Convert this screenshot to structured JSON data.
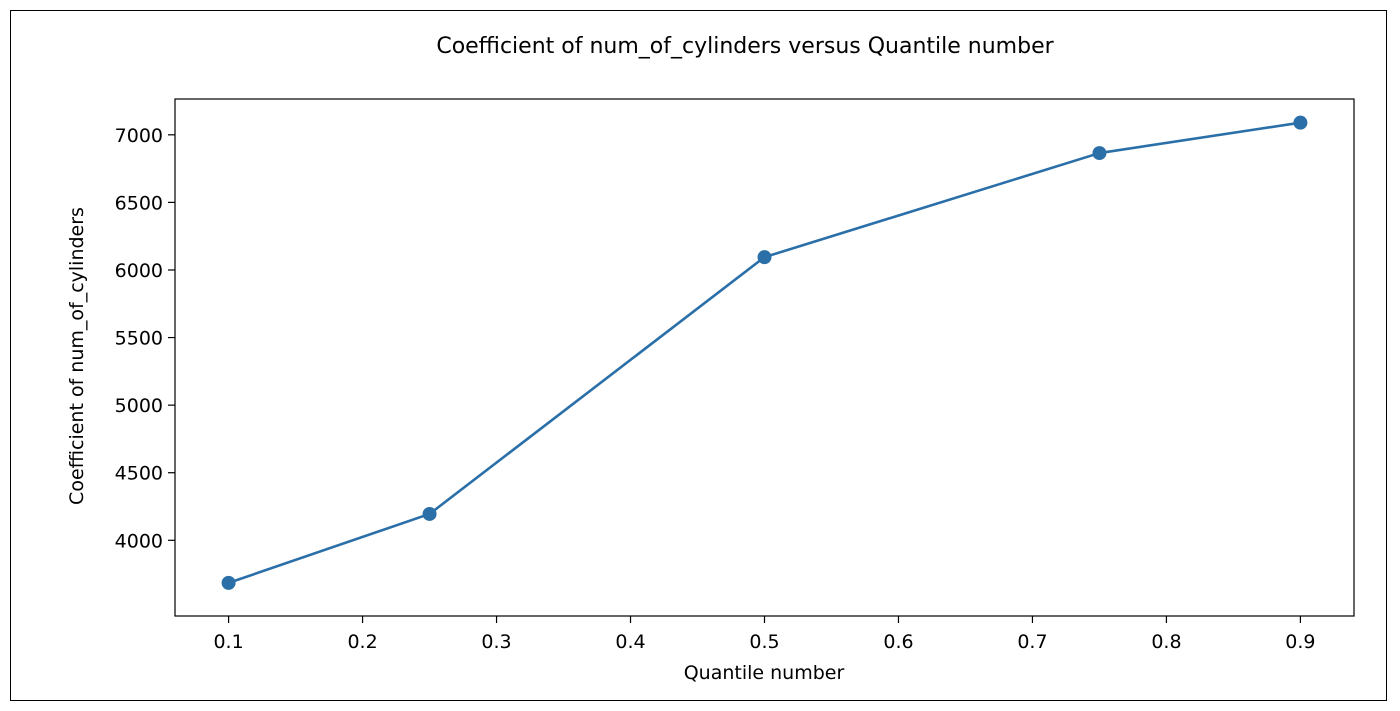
{
  "chart_data": {
    "type": "line",
    "title": "Coefficient of num_of_cylinders versus Quantile number",
    "xlabel": "Quantile number",
    "ylabel": "Coefficient of num_of_cylinders",
    "x": [
      0.1,
      0.25,
      0.5,
      0.75,
      0.9
    ],
    "series": [
      {
        "values": [
          3685,
          4195,
          6095,
          6865,
          7090
        ]
      }
    ],
    "xlim": [
      0.06,
      0.94
    ],
    "ylim": [
      3440,
      7265
    ],
    "xticks": [
      0.1,
      0.2,
      0.3,
      0.4,
      0.5,
      0.6,
      0.7,
      0.8,
      0.9
    ],
    "xtick_labels": [
      "0.1",
      "0.2",
      "0.3",
      "0.4",
      "0.5",
      "0.6",
      "0.7",
      "0.8",
      "0.9"
    ],
    "yticks": [
      4000,
      4500,
      5000,
      5500,
      6000,
      6500,
      7000
    ],
    "ytick_labels": [
      "4000",
      "4500",
      "5000",
      "5500",
      "6000",
      "6500",
      "7000"
    ],
    "grid": false,
    "line_color": "#2a6fa8",
    "marker": "circle"
  }
}
